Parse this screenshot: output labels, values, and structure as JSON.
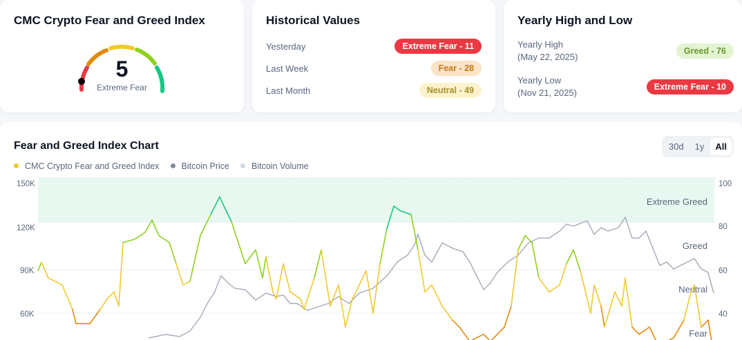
{
  "index_card": {
    "title": "CMC Crypto Fear and Greed Index",
    "value": "5",
    "label": "Extreme Fear"
  },
  "historical": {
    "title": "Historical Values",
    "rows": [
      {
        "label": "Yesterday",
        "badge": "Extreme Fear - 11",
        "kind": "ef"
      },
      {
        "label": "Last Week",
        "badge": "Fear - 28",
        "kind": "f"
      },
      {
        "label": "Last Month",
        "badge": "Neutral - 49",
        "kind": "n"
      }
    ]
  },
  "yearly": {
    "title": "Yearly High and Low",
    "high": {
      "label": "Yearly High",
      "date": "(May 22, 2025)",
      "badge": "Greed - 76"
    },
    "low": {
      "label": "Yearly Low",
      "date": "(Nov 21, 2025)",
      "badge": "Extreme Fear - 10"
    }
  },
  "colors": {
    "extreme_fear": "#ea3943",
    "fear": "#e38a0a",
    "neutral": "#f0c92e",
    "greed": "#8dd11c",
    "extreme_greed": "#16c784",
    "btc_price": "#808a9d",
    "btc_volume": "#cfd6e4"
  },
  "chart_data": {
    "type": "line",
    "title": "Fear and Greed Index Chart",
    "range_buttons": [
      "30d",
      "1y",
      "All"
    ],
    "active_range": "All",
    "legend": [
      "CMC Crypto Fear and Greed Index",
      "Bitcoin Price",
      "Bitcoin Volume"
    ],
    "left_axis": {
      "ticks": [
        "150K",
        "120K",
        "90K",
        "60K"
      ],
      "values": [
        150,
        120,
        90,
        60
      ],
      "unit": "K USD"
    },
    "right_axis": {
      "ticks": [
        "100",
        "80",
        "60",
        "40"
      ],
      "values": [
        100,
        80,
        60,
        40
      ]
    },
    "zones": [
      "Extreme Greed",
      "Greed",
      "Neutral",
      "Fear"
    ],
    "fear_greed_series": [
      [
        0,
        58.8
      ],
      [
        5,
        62.5
      ],
      [
        15,
        55.6
      ],
      [
        35,
        52.5
      ],
      [
        50,
        41.6
      ],
      [
        55,
        35.3
      ],
      [
        75,
        35.3
      ],
      [
        90,
        41.6
      ],
      [
        100,
        46.3
      ],
      [
        110,
        49.4
      ],
      [
        117,
        43.1
      ],
      [
        123,
        71.3
      ],
      [
        140,
        72.8
      ],
      [
        155,
        75.9
      ],
      [
        165,
        81.3
      ],
      [
        175,
        74.4
      ],
      [
        190,
        71.3
      ],
      [
        200,
        61.9
      ],
      [
        210,
        52.5
      ],
      [
        220,
        54.1
      ],
      [
        235,
        74.4
      ],
      [
        250,
        83.8
      ],
      [
        263,
        91.6
      ],
      [
        270,
        86.9
      ],
      [
        280,
        80.6
      ],
      [
        290,
        71.3
      ],
      [
        300,
        61.9
      ],
      [
        315,
        68.1
      ],
      [
        325,
        55.6
      ],
      [
        330,
        65
      ],
      [
        340,
        49.4
      ],
      [
        345,
        46.3
      ],
      [
        355,
        61.9
      ],
      [
        365,
        49.4
      ],
      [
        380,
        46.3
      ],
      [
        385,
        41.6
      ],
      [
        400,
        55.6
      ],
      [
        410,
        68.1
      ],
      [
        423,
        43.1
      ],
      [
        435,
        52.5
      ],
      [
        445,
        33.8
      ],
      [
        455,
        46.3
      ],
      [
        465,
        52.5
      ],
      [
        475,
        58.8
      ],
      [
        485,
        40
      ],
      [
        495,
        61.9
      ],
      [
        505,
        77.5
      ],
      [
        515,
        87.5
      ],
      [
        525,
        85.3
      ],
      [
        540,
        83.8
      ],
      [
        550,
        68.1
      ],
      [
        560,
        49.4
      ],
      [
        570,
        52.5
      ],
      [
        585,
        43.1
      ],
      [
        600,
        36.9
      ],
      [
        610,
        33.8
      ],
      [
        625,
        27.5
      ],
      [
        645,
        30.6
      ],
      [
        655,
        27.5
      ],
      [
        675,
        33.8
      ],
      [
        685,
        43.1
      ],
      [
        695,
        68.1
      ],
      [
        705,
        74.4
      ],
      [
        715,
        71.3
      ],
      [
        725,
        55.6
      ],
      [
        740,
        49.4
      ],
      [
        755,
        52.5
      ],
      [
        765,
        61.9
      ],
      [
        775,
        68.1
      ],
      [
        785,
        58.8
      ],
      [
        795,
        46.3
      ],
      [
        800,
        40
      ],
      [
        805,
        52.5
      ],
      [
        815,
        43.1
      ],
      [
        820,
        33.8
      ],
      [
        835,
        49.4
      ],
      [
        845,
        43.1
      ],
      [
        850,
        55.6
      ],
      [
        860,
        33.8
      ],
      [
        870,
        30.6
      ],
      [
        885,
        33.8
      ],
      [
        895,
        27.5
      ],
      [
        910,
        27.5
      ],
      [
        920,
        29
      ],
      [
        935,
        36.9
      ],
      [
        945,
        49.4
      ],
      [
        950,
        52.5
      ],
      [
        960,
        33.8
      ],
      [
        970,
        36.9
      ],
      [
        975,
        27.5
      ]
    ],
    "bitcoin_price_series": [
      [
        160,
        43.5
      ],
      [
        185,
        45.8
      ],
      [
        205,
        44.4
      ],
      [
        220,
        48.1
      ],
      [
        235,
        57.3
      ],
      [
        245,
        66.4
      ],
      [
        255,
        73.3
      ],
      [
        265,
        84.8
      ],
      [
        275,
        80.2
      ],
      [
        285,
        76.5
      ],
      [
        300,
        75.6
      ],
      [
        315,
        68.7
      ],
      [
        330,
        73.3
      ],
      [
        345,
        71
      ],
      [
        355,
        72
      ],
      [
        365,
        66.4
      ],
      [
        375,
        66.4
      ],
      [
        390,
        61.8
      ],
      [
        405,
        64.1
      ],
      [
        420,
        66.4
      ],
      [
        435,
        71
      ],
      [
        450,
        66.4
      ],
      [
        465,
        73.3
      ],
      [
        485,
        76.5
      ],
      [
        505,
        84.8
      ],
      [
        520,
        94
      ],
      [
        535,
        98.6
      ],
      [
        545,
        105.5
      ],
      [
        550,
        112.4
      ],
      [
        560,
        98.6
      ],
      [
        570,
        94
      ],
      [
        585,
        106.8
      ],
      [
        600,
        103.2
      ],
      [
        615,
        100.9
      ],
      [
        625,
        94
      ],
      [
        635,
        84.8
      ],
      [
        645,
        75.6
      ],
      [
        655,
        80.2
      ],
      [
        665,
        87.1
      ],
      [
        680,
        94
      ],
      [
        695,
        98.6
      ],
      [
        710,
        106.8
      ],
      [
        725,
        110
      ],
      [
        740,
        110
      ],
      [
        755,
        114.6
      ],
      [
        765,
        119.2
      ],
      [
        775,
        117.9
      ],
      [
        795,
        121.5
      ],
      [
        805,
        112.4
      ],
      [
        815,
        116.9
      ],
      [
        825,
        114.6
      ],
      [
        840,
        116.9
      ],
      [
        850,
        123.8
      ],
      [
        860,
        110
      ],
      [
        870,
        110
      ],
      [
        880,
        114.6
      ],
      [
        890,
        103.2
      ],
      [
        900,
        91.7
      ],
      [
        910,
        94
      ],
      [
        920,
        89.4
      ],
      [
        930,
        91.7
      ],
      [
        940,
        94
      ],
      [
        950,
        96.3
      ],
      [
        960,
        89.4
      ],
      [
        970,
        87.1
      ],
      [
        978,
        73.3
      ]
    ]
  }
}
